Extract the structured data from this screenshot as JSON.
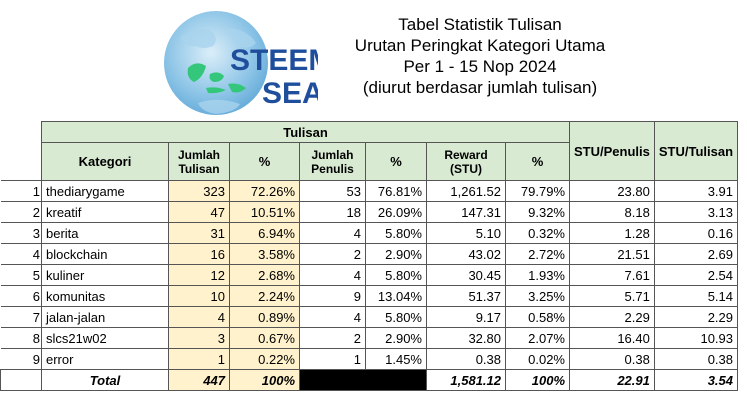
{
  "logo": {
    "line1": "STEEM",
    "line2": "SEA"
  },
  "title": {
    "line1": "Tabel Statistik Tulisan",
    "line2": "Urutan Peringkat Kategori Utama",
    "line3": "Per 1 - 15 Nop 2024",
    "line4": "(diurut berdasar jumlah tulisan)"
  },
  "table": {
    "group_header": "Tulisan",
    "headers": {
      "kategori": "Kategori",
      "jumlah_tulisan_1": "Jumlah",
      "jumlah_tulisan_2": "Tulisan",
      "pct1": "%",
      "jumlah_penulis_1": "Jumlah",
      "jumlah_penulis_2": "Penulis",
      "pct2": "%",
      "reward_1": "Reward",
      "reward_2": "(STU)",
      "pct3": "%",
      "stu_penulis": "STU/Penulis",
      "stu_tulisan": "STU/Tulisan"
    },
    "rows": [
      {
        "rank": "1",
        "kategori": "thediarygame",
        "tulisan": "323",
        "pct_tulisan": "72.26%",
        "penulis": "53",
        "pct_penulis": "76.81%",
        "reward": "1,261.52",
        "pct_reward": "79.79%",
        "stu_penulis": "23.80",
        "stu_tulisan": "3.91"
      },
      {
        "rank": "2",
        "kategori": "kreatif",
        "tulisan": "47",
        "pct_tulisan": "10.51%",
        "penulis": "18",
        "pct_penulis": "26.09%",
        "reward": "147.31",
        "pct_reward": "9.32%",
        "stu_penulis": "8.18",
        "stu_tulisan": "3.13"
      },
      {
        "rank": "3",
        "kategori": "berita",
        "tulisan": "31",
        "pct_tulisan": "6.94%",
        "penulis": "4",
        "pct_penulis": "5.80%",
        "reward": "5.10",
        "pct_reward": "0.32%",
        "stu_penulis": "1.28",
        "stu_tulisan": "0.16"
      },
      {
        "rank": "4",
        "kategori": "blockchain",
        "tulisan": "16",
        "pct_tulisan": "3.58%",
        "penulis": "2",
        "pct_penulis": "2.90%",
        "reward": "43.02",
        "pct_reward": "2.72%",
        "stu_penulis": "21.51",
        "stu_tulisan": "2.69"
      },
      {
        "rank": "5",
        "kategori": "kuliner",
        "tulisan": "12",
        "pct_tulisan": "2.68%",
        "penulis": "4",
        "pct_penulis": "5.80%",
        "reward": "30.45",
        "pct_reward": "1.93%",
        "stu_penulis": "7.61",
        "stu_tulisan": "2.54"
      },
      {
        "rank": "6",
        "kategori": "komunitas",
        "tulisan": "10",
        "pct_tulisan": "2.24%",
        "penulis": "9",
        "pct_penulis": "13.04%",
        "reward": "51.37",
        "pct_reward": "3.25%",
        "stu_penulis": "5.71",
        "stu_tulisan": "5.14"
      },
      {
        "rank": "7",
        "kategori": "jalan-jalan",
        "tulisan": "4",
        "pct_tulisan": "0.89%",
        "penulis": "4",
        "pct_penulis": "5.80%",
        "reward": "9.17",
        "pct_reward": "0.58%",
        "stu_penulis": "2.29",
        "stu_tulisan": "2.29"
      },
      {
        "rank": "8",
        "kategori": "slcs21w02",
        "tulisan": "3",
        "pct_tulisan": "0.67%",
        "penulis": "2",
        "pct_penulis": "2.90%",
        "reward": "32.80",
        "pct_reward": "2.07%",
        "stu_penulis": "16.40",
        "stu_tulisan": "10.93"
      },
      {
        "rank": "9",
        "kategori": "error",
        "tulisan": "1",
        "pct_tulisan": "0.22%",
        "penulis": "1",
        "pct_penulis": "1.45%",
        "reward": "0.38",
        "pct_reward": "0.02%",
        "stu_penulis": "0.38",
        "stu_tulisan": "0.38"
      }
    ],
    "total": {
      "label": "Total",
      "tulisan": "447",
      "pct_tulisan": "100%",
      "reward": "1,581.12",
      "pct_reward": "100%",
      "stu_penulis": "22.91",
      "stu_tulisan": "3.54"
    }
  },
  "colors": {
    "header_green": "#d9ead3",
    "highlight_yellow": "#fff2cc",
    "logo_blue": "#1f4e9c",
    "globe_blue": "#7ab8dd",
    "land_green": "#34c77b"
  }
}
